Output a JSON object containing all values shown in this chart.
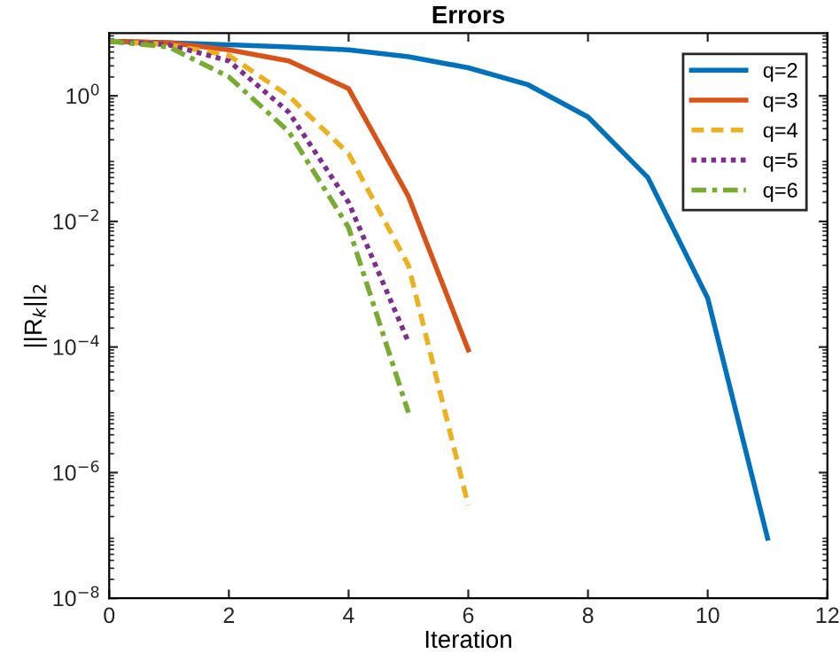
{
  "chart_data": {
    "type": "line",
    "title": "Errors",
    "xlabel": "Iteration",
    "ylabel": "||R$_{k}$||$_{2}$",
    "log": "y",
    "x": [
      0,
      1,
      2,
      3,
      4,
      5,
      6,
      7,
      8,
      9,
      10,
      11
    ],
    "xlim": [
      0,
      12
    ],
    "xticks": [
      0,
      2,
      4,
      6,
      8,
      10,
      12
    ],
    "ylim": [
      1e-08,
      10
    ],
    "yticks": [
      {
        "value": 1e-08,
        "label": "10$^{−8}$"
      },
      {
        "value": 1e-06,
        "label": "10$^{−6}$"
      },
      {
        "value": 0.0001,
        "label": "10$^{−4}$"
      },
      {
        "value": 0.01,
        "label": "10$^{−2}$"
      },
      {
        "value": 1,
        "label": "10$^{0}$"
      }
    ],
    "grid": false,
    "legend": "top right",
    "marker": "none",
    "series": [
      {
        "name": "q=2",
        "color": "#0072bd",
        "line_style": "solid",
        "values": [
          7.4,
          7,
          6.5,
          6,
          5.4,
          4.2,
          2.8,
          1.5,
          0.46,
          0.05,
          0.0006,
          9e-08
        ]
      },
      {
        "name": "q=3",
        "color": "#d95319",
        "line_style": "solid",
        "x": [
          0,
          1,
          2,
          3,
          4,
          5,
          6
        ],
        "values": [
          7.4,
          7,
          5.4,
          3.6,
          1.3,
          0.025,
          9e-05
        ]
      },
      {
        "name": "q=4",
        "color": "#edb120",
        "line_style": "dashed",
        "x": [
          0,
          1,
          2,
          3,
          4,
          5,
          6
        ],
        "values": [
          7.4,
          6.5,
          4.4,
          1.0,
          0.12,
          0.002,
          3e-07
        ]
      },
      {
        "name": "q=5",
        "color": "#7e2f8e",
        "line_style": "dotted",
        "x": [
          0,
          1,
          2,
          3,
          4,
          5
        ],
        "values": [
          7.4,
          6.5,
          3.6,
          0.55,
          0.02,
          0.00012
        ]
      },
      {
        "name": "q=6",
        "color": "#77ac30",
        "line_style": "dashdot",
        "x": [
          0,
          1,
          2,
          3,
          4,
          5
        ],
        "values": [
          7.4,
          6,
          2,
          0.27,
          0.008,
          9e-06
        ]
      }
    ]
  }
}
